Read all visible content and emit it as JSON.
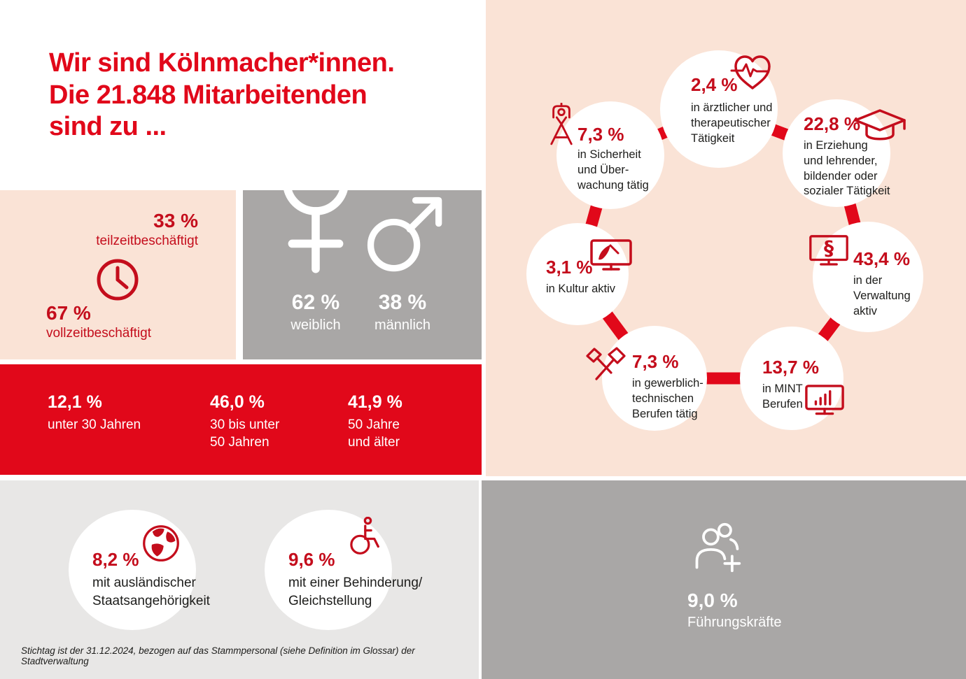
{
  "title": {
    "lines": [
      "Wir sind Kölnmacher*innen.",
      "Die 21.848 Mitarbeitenden",
      "sind zu ..."
    ]
  },
  "employment": {
    "part_time": {
      "value": "33 %",
      "label": "teilzeitbeschäftigt"
    },
    "full_time": {
      "value": "67 %",
      "label": "vollzeitbeschäftigt"
    },
    "icon": "clock-icon"
  },
  "gender": {
    "female": {
      "value": "62 %",
      "label": "weiblich",
      "icon": "female-icon"
    },
    "male": {
      "value": "38 %",
      "label": "männlich",
      "icon": "male-icon"
    }
  },
  "age_groups": [
    {
      "value": "12,1 %",
      "label": "unter 30 Jahren"
    },
    {
      "value": "46,0 %",
      "label": "30 bis unter\n50 Jahren"
    },
    {
      "value": "41,9 %",
      "label": "50 Jahre\nund älter"
    }
  ],
  "diversity": [
    {
      "value": "8,2 %",
      "label": "mit ausländischer\nStaatsangehörigkeit",
      "icon": "globe-icon"
    },
    {
      "value": "9,6 %",
      "label": "mit einer Behinderung/\nGleichstellung",
      "icon": "wheelchair-icon"
    }
  ],
  "occupations": [
    {
      "value": "2,4 %",
      "label": "in ärztlicher und\ntherapeutischer\nTätigkeit",
      "icon": "heart-pulse-icon"
    },
    {
      "value": "22,8 %",
      "label": "in Erziehung\nund lehrender,\nbildender oder\nsozialer Tätigkeit",
      "icon": "graduation-cap-icon"
    },
    {
      "value": "43,4 %",
      "label": "in der\nVerwaltung\naktiv",
      "icon": "monitor-paragraph-icon"
    },
    {
      "value": "13,7 %",
      "label": "in MINT\nBerufen",
      "icon": "monitor-chart-icon"
    },
    {
      "value": "7,3 %",
      "label": "in gewerblich-\ntechnischen\nBerufen tätig",
      "icon": "crossed-tools-icon"
    },
    {
      "value": "3,1 %",
      "label": "in Kultur aktiv",
      "icon": "monitor-brush-icon"
    },
    {
      "value": "7,3 %",
      "label": "in Sicherheit\nund Über-\nwachung tätig",
      "icon": "surveillance-icon"
    }
  ],
  "leadership": {
    "value": "9,0 %",
    "label": "Führungskräfte",
    "icon": "people-plus-icon"
  },
  "footnote": "Stichtag ist der 31.12.2024, bezogen auf das Stammpersonal (siehe Definition im Glossar) der Stadtverwaltung",
  "colors": {
    "brand_red": "#E1081A",
    "stat_red": "#C40D1C",
    "peach": "#FAE3D6",
    "gray": "#A9A7A6",
    "light_gray": "#E8E7E6",
    "text_dark": "#1D1D1B",
    "white": "#FFFFFF"
  },
  "chart_data": [
    {
      "type": "pie",
      "title": "Beschäftigungsumfang",
      "categories": [
        "teilzeitbeschäftigt",
        "vollzeitbeschäftigt"
      ],
      "values": [
        33,
        67
      ]
    },
    {
      "type": "pie",
      "title": "Geschlecht",
      "categories": [
        "weiblich",
        "männlich"
      ],
      "values": [
        62,
        38
      ]
    },
    {
      "type": "pie",
      "title": "Altersgruppen",
      "categories": [
        "unter 30 Jahren",
        "30 bis unter 50 Jahren",
        "50 Jahre und älter"
      ],
      "values": [
        12.1,
        46.0,
        41.9
      ]
    },
    {
      "type": "pie",
      "title": "Tätigkeitsbereiche der 21.848 Mitarbeitenden",
      "categories": [
        "in ärztlicher und therapeutischer Tätigkeit",
        "in Erziehung und lehrender, bildender oder sozialer Tätigkeit",
        "in der Verwaltung aktiv",
        "in MINT Berufen",
        "in gewerblich-technischen Berufen tätig",
        "in Kultur aktiv",
        "in Sicherheit und Überwachung tätig"
      ],
      "values": [
        2.4,
        22.8,
        43.4,
        13.7,
        7.3,
        3.1,
        7.3
      ]
    },
    {
      "type": "bar",
      "title": "Weitere Merkmale",
      "categories": [
        "mit ausländischer Staatsangehörigkeit",
        "mit einer Behinderung/Gleichstellung",
        "Führungskräfte"
      ],
      "values": [
        8.2,
        9.6,
        9.0
      ]
    }
  ]
}
